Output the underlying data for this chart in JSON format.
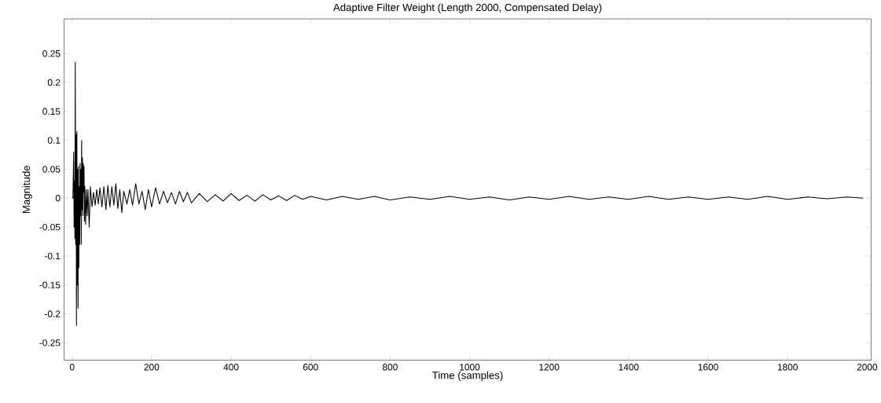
{
  "chart_data": {
    "type": "line",
    "title": "Adaptive Filter Weight (Length 2000, Compensated Delay)",
    "xlabel": "Time (samples)",
    "ylabel": "Magnitude",
    "xlim": [
      -20,
      2010
    ],
    "ylim": [
      -0.28,
      0.31
    ],
    "xticks": [
      0,
      200,
      400,
      600,
      800,
      1000,
      1200,
      1400,
      1600,
      1800,
      2000
    ],
    "yticks": [
      -0.25,
      -0.2,
      -0.15,
      -0.1,
      -0.05,
      0,
      0.05,
      0.1,
      0.15,
      0.2,
      0.25
    ],
    "series": [
      {
        "color": "#000000",
        "x": [
          0,
          2,
          4,
          5,
          6,
          7,
          8,
          9,
          10,
          11,
          12,
          13,
          14,
          15,
          16,
          17,
          18,
          19,
          20,
          21,
          22,
          23,
          24,
          25,
          26,
          27,
          28,
          29,
          30,
          31,
          32,
          34,
          36,
          38,
          40,
          43,
          46,
          50,
          54,
          58,
          62,
          66,
          70,
          75,
          80,
          85,
          90,
          95,
          100,
          105,
          110,
          115,
          120,
          125,
          130,
          138,
          145,
          152,
          160,
          168,
          176,
          184,
          192,
          200,
          210,
          220,
          230,
          240,
          250,
          260,
          270,
          280,
          290,
          300,
          320,
          340,
          360,
          380,
          400,
          420,
          440,
          460,
          480,
          500,
          520,
          540,
          560,
          580,
          600,
          640,
          680,
          720,
          760,
          800,
          850,
          900,
          950,
          1000,
          1050,
          1100,
          1150,
          1200,
          1250,
          1300,
          1350,
          1400,
          1450,
          1500,
          1550,
          1600,
          1650,
          1700,
          1750,
          1800,
          1850,
          1900,
          1950,
          1990
        ],
        "values": [
          0,
          0,
          0.08,
          -0.05,
          0.03,
          -0.07,
          0.235,
          -0.08,
          0.11,
          -0.22,
          0.115,
          -0.15,
          0.05,
          -0.19,
          0.055,
          -0.12,
          0.02,
          -0.08,
          0.06,
          -0.03,
          0.05,
          -0.08,
          0.1,
          -0.02,
          0.07,
          -0.03,
          0.06,
          0.01,
          0.055,
          -0.04,
          0.02,
          -0.045,
          0.015,
          -0.03,
          0.015,
          -0.05,
          0.02,
          -0.015,
          0.01,
          -0.012,
          0.015,
          -0.01,
          0.018,
          -0.015,
          0.02,
          -0.02,
          0.022,
          -0.015,
          0.02,
          -0.012,
          0.025,
          -0.018,
          0.015,
          -0.025,
          0.012,
          -0.01,
          0.015,
          -0.012,
          0.025,
          -0.01,
          0.012,
          -0.02,
          0.015,
          -0.015,
          0.018,
          -0.01,
          0.012,
          -0.008,
          0.01,
          -0.01,
          0.012,
          -0.006,
          0.01,
          -0.008,
          0.008,
          -0.006,
          0.006,
          -0.005,
          0.008,
          -0.004,
          0.005,
          -0.005,
          0.006,
          -0.003,
          0.004,
          -0.004,
          0.005,
          -0.002,
          0.003,
          -0.003,
          0.003,
          -0.002,
          0.003,
          -0.003,
          0.002,
          -0.002,
          0.003,
          -0.002,
          0.002,
          -0.003,
          0.002,
          -0.002,
          0.003,
          -0.002,
          0.002,
          -0.002,
          0.003,
          -0.002,
          0.002,
          -0.002,
          0.002,
          -0.002,
          0.003,
          -0.002,
          0.002,
          -0.001,
          0.002,
          0
        ]
      }
    ]
  }
}
